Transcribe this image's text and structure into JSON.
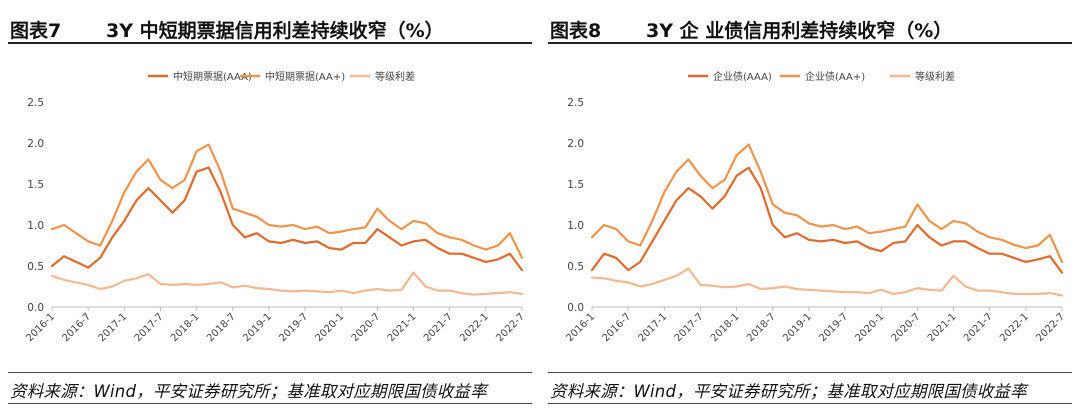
{
  "panels": [
    {
      "fig_label": "图表7",
      "title": "3Y 中短期票据信用利差持续收窄（%）",
      "source": "资料来源：Wind，平安证券研究所；基准取对应期限国债收益率"
    },
    {
      "fig_label": "图表8",
      "title": "3Y 企 业债信用利差持续收窄（%）",
      "source": "资料来源：Wind，平安证券研究所；基准取对应期限国债收益率"
    }
  ],
  "chart_data": [
    {
      "type": "line",
      "title": "",
      "xlabel": "",
      "ylabel": "",
      "ylim": [
        0,
        2.5
      ],
      "yticks": [
        "0.0",
        "0.5",
        "1.0",
        "1.5",
        "2.0",
        "2.5"
      ],
      "x_ticks": [
        "2016-1",
        "2016-7",
        "2017-1",
        "2017-7",
        "2018-1",
        "2018-7",
        "2019-1",
        "2019-7",
        "2020-1",
        "2020-7",
        "2021-1",
        "2021-7",
        "2022-1",
        "2022-7"
      ],
      "grid": false,
      "legend": "top",
      "x": [
        "2016-1",
        "2016-3",
        "2016-5",
        "2016-7",
        "2016-9",
        "2016-11",
        "2017-1",
        "2017-3",
        "2017-5",
        "2017-7",
        "2017-9",
        "2017-11",
        "2018-1",
        "2018-3",
        "2018-5",
        "2018-7",
        "2018-9",
        "2018-11",
        "2019-1",
        "2019-3",
        "2019-5",
        "2019-7",
        "2019-9",
        "2019-11",
        "2020-1",
        "2020-3",
        "2020-5",
        "2020-7",
        "2020-9",
        "2020-11",
        "2021-1",
        "2021-3",
        "2021-5",
        "2021-7",
        "2021-9",
        "2021-11",
        "2022-1",
        "2022-3",
        "2022-5",
        "2022-7"
      ],
      "series": [
        {
          "name": "中短期票据(AAA)",
          "color": "#e06a2c",
          "values": [
            0.5,
            0.62,
            0.55,
            0.48,
            0.6,
            0.85,
            1.05,
            1.3,
            1.45,
            1.3,
            1.15,
            1.3,
            1.65,
            1.7,
            1.4,
            1.0,
            0.85,
            0.9,
            0.8,
            0.78,
            0.82,
            0.78,
            0.8,
            0.72,
            0.7,
            0.78,
            0.78,
            0.95,
            0.85,
            0.75,
            0.8,
            0.82,
            0.72,
            0.65,
            0.65,
            0.6,
            0.55,
            0.58,
            0.65,
            0.45
          ]
        },
        {
          "name": "中短期票据(AA+)",
          "color": "#f0924a",
          "values": [
            0.95,
            1.0,
            0.9,
            0.8,
            0.75,
            1.05,
            1.4,
            1.65,
            1.8,
            1.55,
            1.45,
            1.55,
            1.9,
            1.98,
            1.65,
            1.2,
            1.15,
            1.1,
            1.0,
            0.98,
            1.0,
            0.95,
            0.98,
            0.9,
            0.92,
            0.95,
            0.97,
            1.2,
            1.05,
            0.95,
            1.05,
            1.02,
            0.9,
            0.85,
            0.82,
            0.75,
            0.7,
            0.75,
            0.9,
            0.6
          ]
        },
        {
          "name": "等级利差",
          "color": "#f3b891",
          "values": [
            0.38,
            0.33,
            0.3,
            0.27,
            0.22,
            0.25,
            0.32,
            0.35,
            0.4,
            0.28,
            0.27,
            0.28,
            0.27,
            0.28,
            0.3,
            0.24,
            0.26,
            0.23,
            0.22,
            0.2,
            0.19,
            0.2,
            0.19,
            0.18,
            0.2,
            0.17,
            0.2,
            0.22,
            0.2,
            0.21,
            0.42,
            0.25,
            0.2,
            0.2,
            0.17,
            0.15,
            0.16,
            0.17,
            0.18,
            0.16
          ]
        }
      ]
    },
    {
      "type": "line",
      "title": "",
      "xlabel": "",
      "ylabel": "",
      "ylim": [
        0,
        2.5
      ],
      "yticks": [
        "0.0",
        "0.5",
        "1.0",
        "1.5",
        "2.0",
        "2.5"
      ],
      "x_ticks": [
        "2016-1",
        "2016-7",
        "2017-1",
        "2017-7",
        "2018-1",
        "2018-7",
        "2019-1",
        "2019-7",
        "2020-1",
        "2020-7",
        "2021-1",
        "2021-7",
        "2022-1",
        "2022-7"
      ],
      "grid": false,
      "legend": "top",
      "x": [
        "2016-1",
        "2016-3",
        "2016-5",
        "2016-7",
        "2016-9",
        "2016-11",
        "2017-1",
        "2017-3",
        "2017-5",
        "2017-7",
        "2017-9",
        "2017-11",
        "2018-1",
        "2018-3",
        "2018-5",
        "2018-7",
        "2018-9",
        "2018-11",
        "2019-1",
        "2019-3",
        "2019-5",
        "2019-7",
        "2019-9",
        "2019-11",
        "2020-1",
        "2020-3",
        "2020-5",
        "2020-7",
        "2020-9",
        "2020-11",
        "2021-1",
        "2021-3",
        "2021-5",
        "2021-7",
        "2021-9",
        "2021-11",
        "2022-1",
        "2022-3",
        "2022-5",
        "2022-7"
      ],
      "series": [
        {
          "name": "企业债(AAA)",
          "color": "#e06a2c",
          "values": [
            0.45,
            0.65,
            0.6,
            0.45,
            0.55,
            0.8,
            1.05,
            1.3,
            1.45,
            1.35,
            1.2,
            1.35,
            1.6,
            1.7,
            1.45,
            1.0,
            0.85,
            0.9,
            0.82,
            0.8,
            0.82,
            0.78,
            0.8,
            0.72,
            0.68,
            0.78,
            0.8,
            1.0,
            0.85,
            0.75,
            0.8,
            0.8,
            0.72,
            0.65,
            0.65,
            0.6,
            0.55,
            0.58,
            0.62,
            0.42
          ]
        },
        {
          "name": "企业债(AA+)",
          "color": "#f0924a",
          "values": [
            0.85,
            1.0,
            0.95,
            0.8,
            0.75,
            1.05,
            1.4,
            1.65,
            1.8,
            1.6,
            1.45,
            1.55,
            1.85,
            1.98,
            1.65,
            1.25,
            1.15,
            1.12,
            1.02,
            0.98,
            1.0,
            0.95,
            0.98,
            0.9,
            0.92,
            0.95,
            0.98,
            1.25,
            1.05,
            0.95,
            1.05,
            1.02,
            0.92,
            0.85,
            0.82,
            0.76,
            0.72,
            0.75,
            0.88,
            0.55
          ]
        },
        {
          "name": "等级利差",
          "color": "#f3b891",
          "values": [
            0.36,
            0.35,
            0.32,
            0.3,
            0.25,
            0.28,
            0.33,
            0.38,
            0.47,
            0.27,
            0.26,
            0.24,
            0.25,
            0.28,
            0.22,
            0.23,
            0.25,
            0.22,
            0.21,
            0.2,
            0.19,
            0.18,
            0.18,
            0.17,
            0.21,
            0.16,
            0.18,
            0.23,
            0.21,
            0.2,
            0.38,
            0.25,
            0.2,
            0.2,
            0.18,
            0.16,
            0.16,
            0.16,
            0.17,
            0.14
          ]
        }
      ]
    }
  ]
}
